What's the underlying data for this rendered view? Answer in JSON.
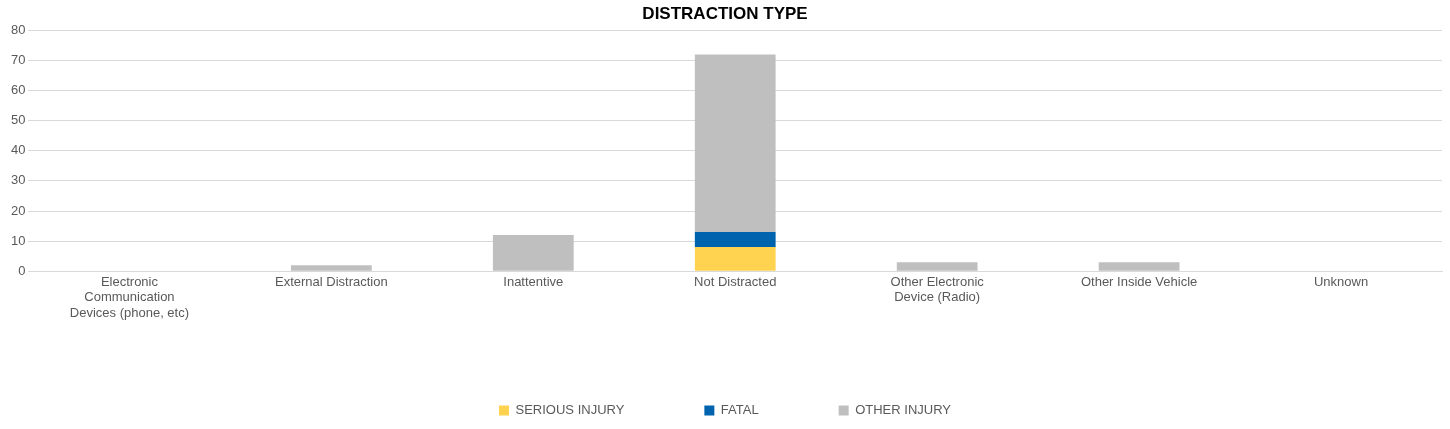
{
  "chart_data": {
    "type": "bar",
    "title": "DISTRACTION TYPE",
    "stacked": true,
    "categories": [
      "Electronic Communication Devices (phone, etc)",
      "External Distraction",
      "Inattentive",
      "Not Distracted",
      "Other Electronic Device (Radio)",
      "Other Inside Vehicle",
      "Unknown"
    ],
    "series": [
      {
        "name": "SERIOUS INJURY",
        "color": "#ffd24f",
        "values": [
          0,
          0,
          0,
          8,
          0,
          0,
          0
        ]
      },
      {
        "name": "FATAL",
        "color": "#0063ad",
        "values": [
          0,
          0,
          0,
          5,
          0,
          0,
          0
        ]
      },
      {
        "name": "OTHER INJURY",
        "color": "#bfbfbf",
        "values": [
          0,
          2,
          12,
          59,
          3,
          3,
          0
        ]
      }
    ],
    "ylim": [
      0,
      80
    ],
    "yticks": [
      0,
      10,
      20,
      30,
      40,
      50,
      60,
      70,
      80
    ],
    "grid": "y",
    "legend": "bottom"
  }
}
